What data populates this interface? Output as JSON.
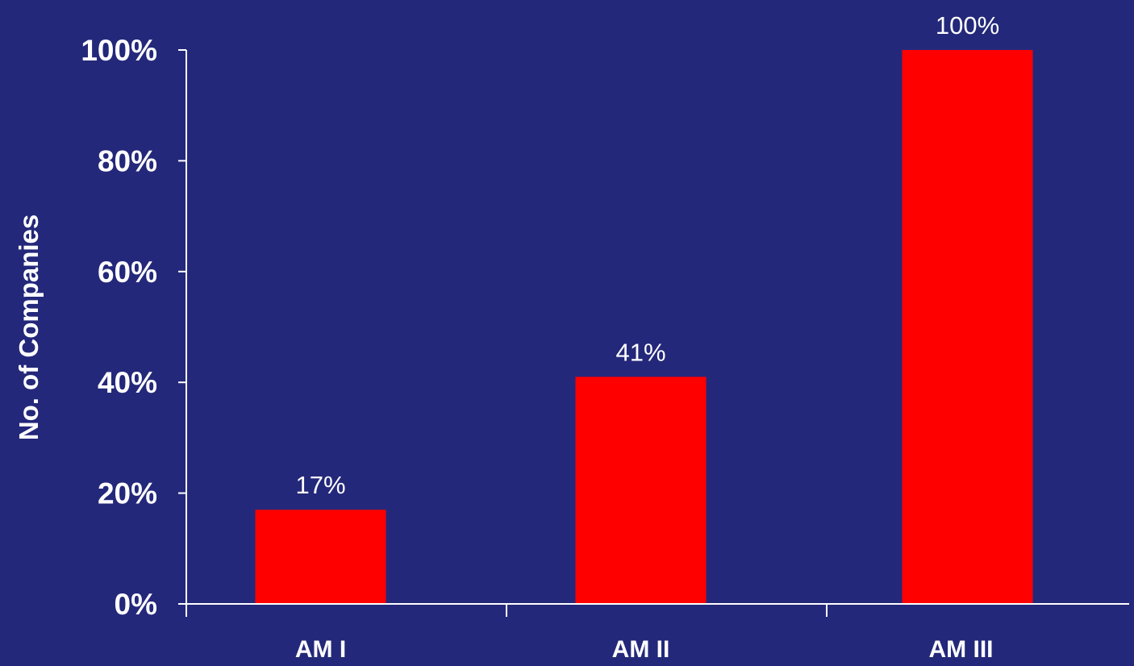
{
  "colors": {
    "background": "#24287a",
    "bar": "#ff0000",
    "axis": "#ffffff",
    "text": "#ffffff"
  },
  "chart_data": {
    "type": "bar",
    "title": "",
    "xlabel": "",
    "ylabel": "No. of Companies",
    "categories": [
      "AM I",
      "AM II",
      "AM III"
    ],
    "values": [
      17,
      41,
      100
    ],
    "data_labels": [
      "17%",
      "41%",
      "100%"
    ],
    "ylim": [
      0,
      100
    ],
    "yticks": [
      0,
      20,
      40,
      60,
      80,
      100
    ],
    "ytick_labels": [
      "0%",
      "20%",
      "40%",
      "60%",
      "80%",
      "100%"
    ],
    "grid": false,
    "legend": "none"
  }
}
